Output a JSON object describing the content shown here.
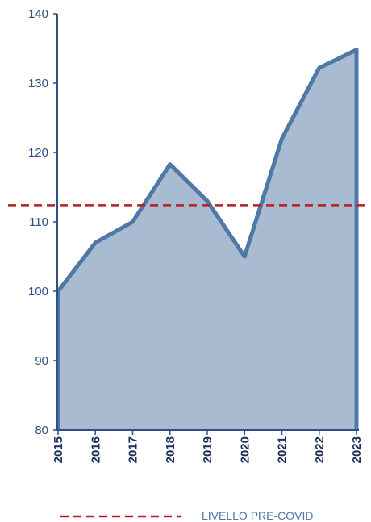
{
  "chart_data": {
    "type": "area",
    "title": "",
    "xlabel": "",
    "ylabel": "",
    "x": [
      "2015",
      "2016",
      "2017",
      "2018",
      "2019",
      "2020",
      "2021",
      "2022",
      "2023"
    ],
    "series": [
      {
        "values": [
          100,
          107,
          110,
          118.3,
          113,
          105,
          122,
          132.2,
          134.8
        ]
      }
    ],
    "reference_line": {
      "label": "LIVELLO PRE-COVID",
      "value": 112.4
    },
    "ylim": [
      80,
      140
    ],
    "yticks": [
      "80",
      "90",
      "100",
      "110",
      "120",
      "130",
      "140"
    ],
    "grid": false,
    "legend_position": "bottom"
  },
  "colors": {
    "area_fill": "#a8bbd1",
    "line": "#4e78a5",
    "axis": "#2e4f87",
    "tick_text": "#2e4f87",
    "year_text": "#1a2f5c",
    "reference_line": "#b51f24",
    "legend_text": "#4e78a5"
  }
}
